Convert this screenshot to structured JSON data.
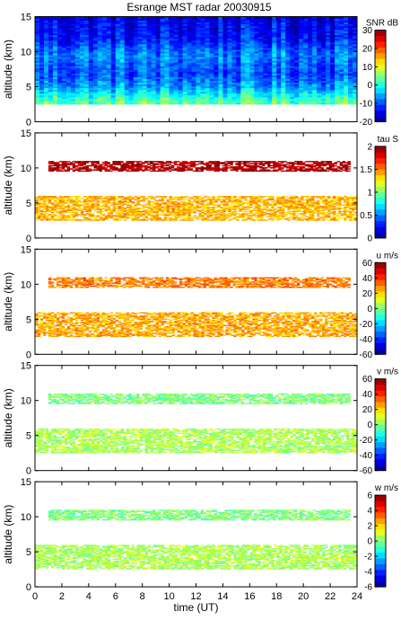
{
  "figure_title": "Esrange MST radar 20030915",
  "colors": {
    "jet": [
      "#00008f",
      "#0000ff",
      "#007fff",
      "#00ffff",
      "#7fff7f",
      "#ffff00",
      "#ff7f00",
      "#ff0000",
      "#7f0000"
    ]
  },
  "chart_data": [
    {
      "type": "heatmap",
      "id": "snr",
      "title": "Esrange MST radar 20030915",
      "xlabel": "",
      "ylabel": "altitude (km)",
      "xlim": [
        0,
        24
      ],
      "ylim": [
        0,
        15
      ],
      "x_ticks": [
        0,
        2,
        4,
        6,
        8,
        10,
        12,
        14,
        16,
        18,
        20,
        22,
        24
      ],
      "y_ticks": [
        0,
        5,
        10,
        15
      ],
      "x_tick_labels_shown": false,
      "colorbar": {
        "label": "SNR dB",
        "min": -20,
        "max": 30,
        "ticks": [
          -20,
          -10,
          0,
          10,
          20,
          30
        ]
      },
      "data_extent": {
        "alt_min": 2.5,
        "alt_max": 15
      },
      "mean_profile": [
        {
          "alt": 2.5,
          "value": 4
        },
        {
          "alt": 3.5,
          "value": 1
        },
        {
          "alt": 5.0,
          "value": -6
        },
        {
          "alt": 7.0,
          "value": -10
        },
        {
          "alt": 9.5,
          "value": -7
        },
        {
          "alt": 12.0,
          "value": -13
        },
        {
          "alt": 15.0,
          "value": -15
        }
      ]
    },
    {
      "type": "heatmap",
      "id": "tau",
      "title": "",
      "xlabel": "",
      "ylabel": "altitude (km)",
      "xlim": [
        0,
        24
      ],
      "ylim": [
        0,
        15
      ],
      "x_ticks": [
        0,
        2,
        4,
        6,
        8,
        10,
        12,
        14,
        16,
        18,
        20,
        22,
        24
      ],
      "y_ticks": [
        0,
        5,
        10,
        15
      ],
      "x_tick_labels_shown": false,
      "colorbar": {
        "label": "tau S",
        "min": 0,
        "max": 2,
        "ticks": [
          0,
          0.5,
          1,
          1.5,
          2
        ]
      },
      "echo_layers": [
        {
          "t_start": 0,
          "t_end": 24,
          "alt_bottom": 2.5,
          "alt_top": 6.0,
          "value": 1.4
        },
        {
          "t_start": 1,
          "t_end": 23.5,
          "alt_bottom": 9.5,
          "alt_top": 11.0,
          "value": 1.9
        }
      ]
    },
    {
      "type": "heatmap",
      "id": "u",
      "title": "",
      "xlabel": "",
      "ylabel": "altitude (km)",
      "xlim": [
        0,
        24
      ],
      "ylim": [
        0,
        15
      ],
      "x_ticks": [
        0,
        2,
        4,
        6,
        8,
        10,
        12,
        14,
        16,
        18,
        20,
        22,
        24
      ],
      "y_ticks": [
        0,
        5,
        10,
        15
      ],
      "x_tick_labels_shown": false,
      "colorbar": {
        "label": "u m/s",
        "min": -60,
        "max": 60,
        "ticks": [
          -60,
          -40,
          -20,
          0,
          20,
          40,
          60
        ]
      },
      "echo_layers": [
        {
          "t_start": 0,
          "t_end": 24,
          "alt_bottom": 2.5,
          "alt_top": 6.0,
          "value": 25
        },
        {
          "t_start": 1,
          "t_end": 23.5,
          "alt_bottom": 9.5,
          "alt_top": 11.0,
          "value": 30
        }
      ]
    },
    {
      "type": "heatmap",
      "id": "v",
      "title": "",
      "xlabel": "",
      "ylabel": "altitude (km)",
      "xlim": [
        0,
        24
      ],
      "ylim": [
        0,
        15
      ],
      "x_ticks": [
        0,
        2,
        4,
        6,
        8,
        10,
        12,
        14,
        16,
        18,
        20,
        22,
        24
      ],
      "y_ticks": [
        0,
        5,
        10,
        15
      ],
      "x_tick_labels_shown": false,
      "colorbar": {
        "label": "v m/s",
        "min": -60,
        "max": 60,
        "ticks": [
          -60,
          -40,
          -20,
          0,
          20,
          40,
          60
        ]
      },
      "echo_layers": [
        {
          "t_start": 0,
          "t_end": 24,
          "alt_bottom": 2.5,
          "alt_top": 6.0,
          "value": 5
        },
        {
          "t_start": 1,
          "t_end": 23.5,
          "alt_bottom": 9.5,
          "alt_top": 11.0,
          "value": 0
        }
      ]
    },
    {
      "type": "heatmap",
      "id": "w",
      "title": "",
      "xlabel": "time (UT)",
      "ylabel": "altitude (km)",
      "xlim": [
        0,
        24
      ],
      "ylim": [
        0,
        15
      ],
      "x_ticks": [
        0,
        2,
        4,
        6,
        8,
        10,
        12,
        14,
        16,
        18,
        20,
        22,
        24
      ],
      "y_ticks": [
        0,
        5,
        10,
        15
      ],
      "x_tick_labels_shown": true,
      "colorbar": {
        "label": "w m/s",
        "min": -6,
        "max": 6,
        "ticks": [
          -6,
          -4,
          -2,
          0,
          2,
          4,
          6
        ]
      },
      "echo_layers": [
        {
          "t_start": 0,
          "t_end": 24,
          "alt_bottom": 2.5,
          "alt_top": 6.0,
          "value": 0.5
        },
        {
          "t_start": 1,
          "t_end": 23.5,
          "alt_bottom": 9.5,
          "alt_top": 11.0,
          "value": 0
        }
      ]
    }
  ]
}
